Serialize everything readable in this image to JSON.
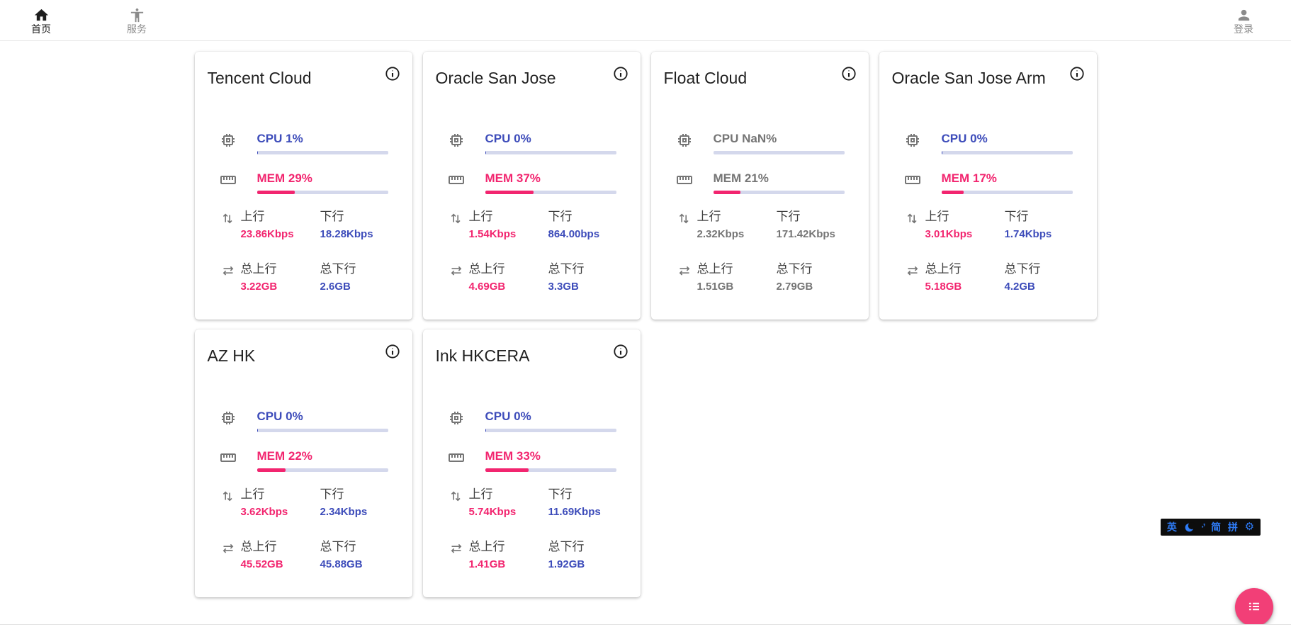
{
  "navbar": {
    "home": {
      "label": "首页"
    },
    "services": {
      "label": "服务"
    },
    "login": {
      "label": "登录"
    }
  },
  "labels": {
    "upload": "上行",
    "download": "下行",
    "total_upload": "总上行",
    "total_download": "总下行"
  },
  "servers": [
    {
      "name": "Tencent Cloud",
      "cpu_label": "CPU 1%",
      "cpu_pct": 1,
      "mem_label": "MEM 29%",
      "mem_pct": 29,
      "upload": "23.86Kbps",
      "download": "18.28Kbps",
      "total_upload": "3.22GB",
      "total_download": "2.6GB",
      "offline": false
    },
    {
      "name": "Oracle San Jose",
      "cpu_label": "CPU 0%",
      "cpu_pct": 0,
      "mem_label": "MEM 37%",
      "mem_pct": 37,
      "upload": "1.54Kbps",
      "download": "864.00bps",
      "total_upload": "4.69GB",
      "total_download": "3.3GB",
      "offline": false
    },
    {
      "name": "Float Cloud",
      "cpu_label": "CPU NaN%",
      "cpu_pct": 0,
      "mem_label": "MEM 21%",
      "mem_pct": 21,
      "upload": "2.32Kbps",
      "download": "171.42Kbps",
      "total_upload": "1.51GB",
      "total_download": "2.79GB",
      "offline": true
    },
    {
      "name": "Oracle San Jose Arm",
      "cpu_label": "CPU 0%",
      "cpu_pct": 0,
      "mem_label": "MEM 17%",
      "mem_pct": 17,
      "upload": "3.01Kbps",
      "download": "1.74Kbps",
      "total_upload": "5.18GB",
      "total_download": "4.2GB",
      "offline": false
    },
    {
      "name": "AZ HK",
      "cpu_label": "CPU 0%",
      "cpu_pct": 0,
      "mem_label": "MEM 22%",
      "mem_pct": 22,
      "upload": "3.62Kbps",
      "download": "2.34Kbps",
      "total_upload": "45.52GB",
      "total_download": "45.88GB",
      "offline": false
    },
    {
      "name": "Ink HKCERA",
      "cpu_label": "CPU 0%",
      "cpu_pct": 0,
      "mem_label": "MEM 33%",
      "mem_pct": 33,
      "upload": "5.74Kbps",
      "download": "11.69Kbps",
      "total_upload": "1.41GB",
      "total_download": "1.92GB",
      "offline": false
    }
  ],
  "ime": {
    "english": "英",
    "simplified": "简",
    "pinyin": "拼",
    "icons": [
      "moon-icon",
      "punctuation-icon",
      "gear-icon"
    ]
  },
  "fab": {
    "icon": "list-icon"
  },
  "colors": {
    "accent_blue": "#3d4cba",
    "accent_pink": "#f2256f",
    "offline_gray": "#757575",
    "bar_track": "#d4d8ec",
    "fab_pink": "#f23f77",
    "ime_blue": "#2e7bf6"
  }
}
